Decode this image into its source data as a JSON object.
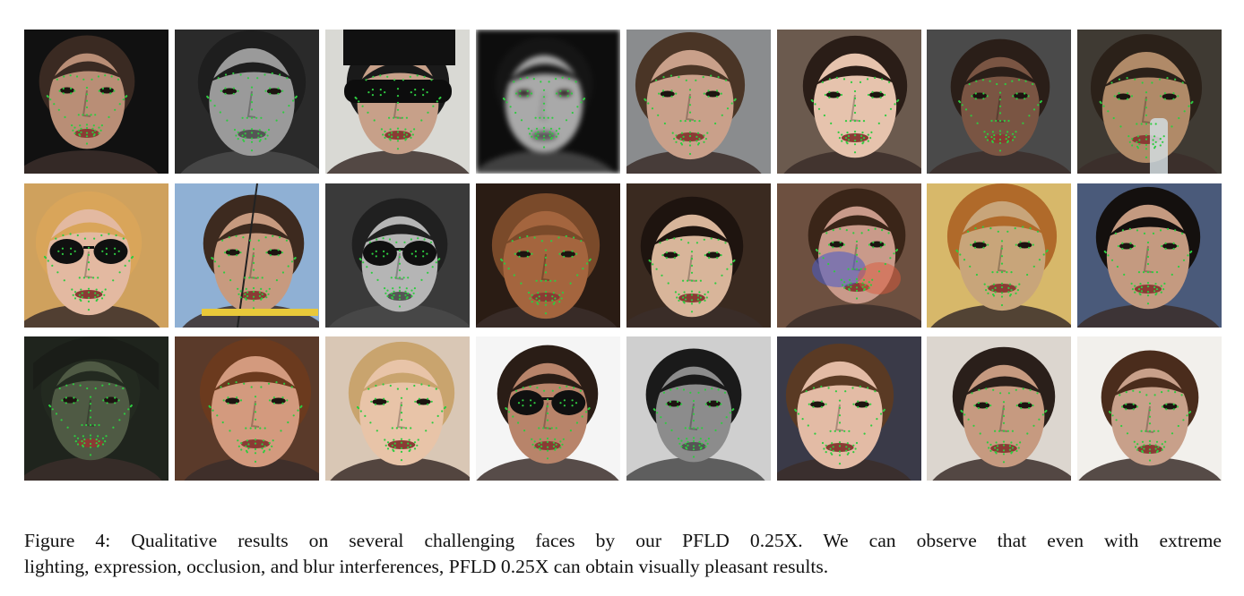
{
  "figure": {
    "caption_line1": "Figure 4:  Qualitative results on several challenging faces by our PFLD 0.25X. We can observe that even with extreme",
    "caption_line2": "lighting, expression, occlusion, and blur interferences, PFLD 0.25X can obtain visually pleasant results.",
    "landmark_color": "#2ecc40",
    "rows": [
      [
        {
          "bg": "#111111",
          "skin": "#b98e76",
          "hair": "#3a2a22",
          "gray": false,
          "acc": "none"
        },
        {
          "bg": "#2a2a2a",
          "skin": "#9a9a9a",
          "hair": "#1e1e1e",
          "gray": true,
          "acc": "none"
        },
        {
          "bg": "#d9d9d4",
          "skin": "#c7a089",
          "hair": "#1a1a1a",
          "gray": false,
          "acc": "mask"
        },
        {
          "bg": "#0d0d0d",
          "skin": "#a9a9a9",
          "hair": "#151515",
          "gray": true,
          "acc": "blur"
        },
        {
          "bg": "#8a8c8e",
          "skin": "#c9a08a",
          "hair": "#4a3526",
          "gray": false,
          "acc": "none"
        },
        {
          "bg": "#6b5a4e",
          "skin": "#e6c3ad",
          "hair": "#2a1d17",
          "gray": false,
          "acc": "none"
        },
        {
          "bg": "#4a4a4a",
          "skin": "#7a5543",
          "hair": "#2a1e18",
          "gray": false,
          "acc": "none"
        },
        {
          "bg": "#3f3a33",
          "skin": "#b08a68",
          "hair": "#2b2119",
          "gray": false,
          "acc": "bottle"
        }
      ],
      [
        {
          "bg": "#cfa15d",
          "skin": "#e3b9a1",
          "hair": "#d9a55a",
          "gray": false,
          "acc": "glasses"
        },
        {
          "bg": "#8fb0d4",
          "skin": "#c79a7f",
          "hair": "#3d2a1f",
          "gray": false,
          "acc": "bow"
        },
        {
          "bg": "#3a3a3a",
          "skin": "#b5b5b5",
          "hair": "#202020",
          "gray": true,
          "acc": "glasses"
        },
        {
          "bg": "#2a1c14",
          "skin": "#a4653e",
          "hair": "#7a4a2a",
          "gray": false,
          "acc": "none"
        },
        {
          "bg": "#3a2a20",
          "skin": "#d8b59a",
          "hair": "#1e140f",
          "gray": false,
          "acc": "none"
        },
        {
          "bg": "#6d5040",
          "skin": "#c99a8a",
          "hair": "#3a2518",
          "gray": false,
          "acc": "paint"
        },
        {
          "bg": "#d7b86a",
          "skin": "#c8a57a",
          "hair": "#b06a2a",
          "gray": false,
          "acc": "none"
        },
        {
          "bg": "#4a5a7a",
          "skin": "#c49a80",
          "hair": "#14100e",
          "gray": false,
          "acc": "none"
        }
      ],
      [
        {
          "bg": "#1f241d",
          "skin": "#4f5a44",
          "hair": "#232a20",
          "gray": false,
          "acc": "helmet"
        },
        {
          "bg": "#5a3a2a",
          "skin": "#d39a7e",
          "hair": "#6b3a1e",
          "gray": false,
          "acc": "none"
        },
        {
          "bg": "#d9c7b5",
          "skin": "#e8c4a8",
          "hair": "#c9a46e",
          "gray": false,
          "acc": "none"
        },
        {
          "bg": "#f5f5f5",
          "skin": "#b8846a",
          "hair": "#2a1d16",
          "gray": false,
          "acc": "glasses"
        },
        {
          "bg": "#cfcfcf",
          "skin": "#8c8c8c",
          "hair": "#1a1a1a",
          "gray": true,
          "acc": "none"
        },
        {
          "bg": "#3a3a48",
          "skin": "#e3bba5",
          "hair": "#5a3a24",
          "gray": false,
          "acc": "none"
        },
        {
          "bg": "#dcd6cf",
          "skin": "#c69a80",
          "hair": "#2a1f1a",
          "gray": false,
          "acc": "none"
        },
        {
          "bg": "#f2f0ec",
          "skin": "#c8a08a",
          "hair": "#4a2c1c",
          "gray": false,
          "acc": "none"
        }
      ]
    ]
  }
}
